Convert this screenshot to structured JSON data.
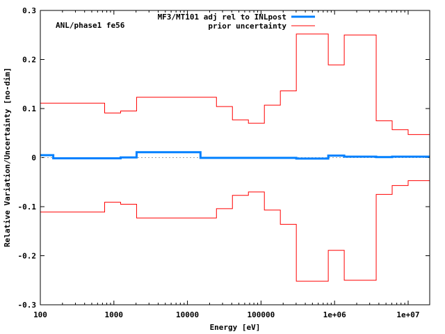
{
  "chart_data": {
    "type": "line",
    "title": "",
    "annotation": "ANL/phase1 fe56",
    "xlabel": "Energy [eV]",
    "ylabel": "Relative Variation/Uncertainty [no-dim]",
    "xscale": "log",
    "xlim": [
      100,
      19640000
    ],
    "ylim": [
      -0.3,
      0.3
    ],
    "grid": false,
    "legend_position": "top-right",
    "xticks": [
      {
        "v": 100,
        "label": "100"
      },
      {
        "v": 1000,
        "label": "1000"
      },
      {
        "v": 10000,
        "label": "10000"
      },
      {
        "v": 100000,
        "label": "100000"
      },
      {
        "v": 1000000,
        "label": "1e+06"
      },
      {
        "v": 10000000,
        "label": "1e+07"
      }
    ],
    "yticks": [
      {
        "v": 0.3,
        "label": "0.3"
      },
      {
        "v": 0.2,
        "label": "0.2"
      },
      {
        "v": 0.1,
        "label": "0.1"
      },
      {
        "v": 0,
        "label": "0"
      },
      {
        "v": -0.1,
        "label": "-0.1"
      },
      {
        "v": -0.2,
        "label": "-0.2"
      },
      {
        "v": -0.3,
        "label": "-0.3"
      }
    ],
    "series": [
      {
        "name": "MF3/MT101 adj rel to INLpost",
        "color": "#0080ff",
        "style": "steps",
        "edges": [
          100,
          150,
          1234.1,
          2034.7,
          15034,
          301970,
          820850,
          1353400,
          3678800,
          6065300,
          19640000
        ],
        "values": [
          0.005,
          -0.0015,
          0.0003,
          0.011,
          -0.0005,
          -0.002,
          0.004,
          0.002,
          0.001,
          0.002
        ]
      },
      {
        "name": "prior uncertainty",
        "color": "#ff0000",
        "style": "steps",
        "mirrored": true,
        "edges": [
          100,
          748.52,
          1234.1,
          2034.7,
          24788,
          40868,
          67379,
          111090,
          183160,
          301970,
          820850,
          1353400,
          3678800,
          6065300,
          10000000,
          19640000
        ],
        "values": [
          0.111,
          0.091,
          0.095,
          0.123,
          0.104,
          0.077,
          0.07,
          0.107,
          0.136,
          0.252,
          0.189,
          0.25,
          0.075,
          0.057,
          0.047
        ]
      }
    ],
    "zero_line": {
      "color": "#a0a0a0",
      "style": "dotted"
    }
  }
}
